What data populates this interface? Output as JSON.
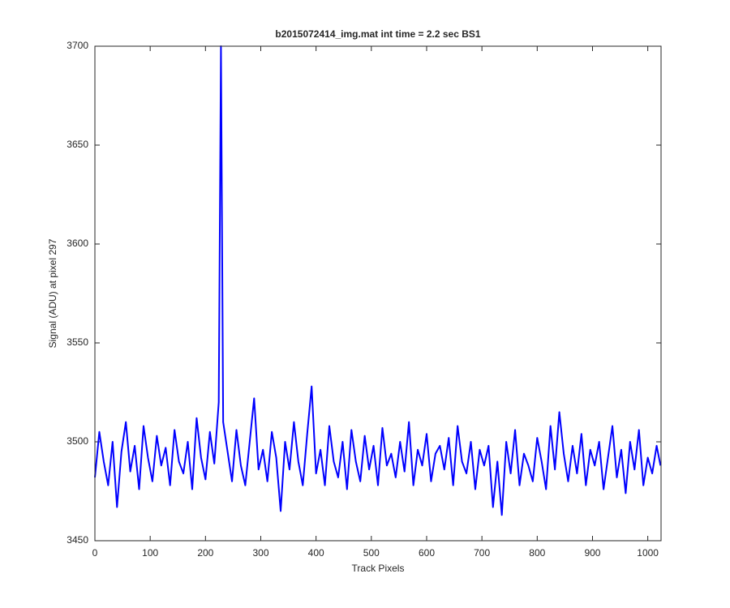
{
  "chart_data": {
    "type": "line",
    "title": "b2015072414_img.mat int time = 2.2 sec   BS1",
    "x_label": "Track Pixels",
    "y_label": "Signal (ADU) at pixel 297",
    "xlim": [
      0,
      1024
    ],
    "ylim": [
      3450,
      3700
    ],
    "xticks": [
      0,
      100,
      200,
      300,
      400,
      500,
      600,
      700,
      800,
      900,
      1000
    ],
    "yticks": [
      3450,
      3500,
      3550,
      3600,
      3650,
      3700
    ],
    "grid": false,
    "x": [
      0,
      8,
      16,
      24,
      32,
      40,
      48,
      56,
      64,
      72,
      80,
      88,
      96,
      104,
      112,
      120,
      128,
      136,
      144,
      152,
      160,
      168,
      176,
      184,
      192,
      200,
      208,
      216,
      224,
      228,
      232,
      240,
      248,
      256,
      264,
      272,
      280,
      288,
      296,
      304,
      312,
      320,
      328,
      336,
      344,
      352,
      360,
      368,
      376,
      384,
      392,
      400,
      408,
      416,
      424,
      432,
      440,
      448,
      456,
      464,
      472,
      480,
      488,
      496,
      504,
      512,
      520,
      528,
      536,
      544,
      552,
      560,
      568,
      576,
      584,
      592,
      600,
      608,
      616,
      624,
      632,
      640,
      648,
      656,
      664,
      672,
      680,
      688,
      696,
      704,
      712,
      720,
      728,
      736,
      744,
      752,
      760,
      768,
      776,
      784,
      792,
      800,
      808,
      816,
      824,
      832,
      840,
      848,
      856,
      864,
      872,
      880,
      888,
      896,
      904,
      912,
      920,
      928,
      936,
      944,
      952,
      960,
      968,
      976,
      984,
      992,
      1000,
      1008,
      1016,
      1023
    ],
    "series": [
      {
        "color": "#0000ff",
        "values": [
          3482,
          3505,
          3490,
          3478,
          3500,
          3467,
          3495,
          3510,
          3485,
          3498,
          3476,
          3508,
          3492,
          3480,
          3503,
          3488,
          3497,
          3478,
          3506,
          3490,
          3484,
          3500,
          3476,
          3512,
          3492,
          3481,
          3505,
          3489,
          3520,
          3700,
          3510,
          3495,
          3480,
          3506,
          3488,
          3478,
          3500,
          3522,
          3486,
          3496,
          3480,
          3505,
          3492,
          3465,
          3500,
          3486,
          3510,
          3490,
          3478,
          3504,
          3528,
          3484,
          3496,
          3478,
          3508,
          3490,
          3482,
          3500,
          3476,
          3506,
          3490,
          3480,
          3503,
          3486,
          3498,
          3478,
          3507,
          3488,
          3494,
          3482,
          3500,
          3485,
          3510,
          3478,
          3496,
          3488,
          3504,
          3480,
          3494,
          3498,
          3486,
          3502,
          3478,
          3508,
          3490,
          3484,
          3500,
          3476,
          3496,
          3488,
          3498,
          3467,
          3490,
          3463,
          3500,
          3484,
          3506,
          3478,
          3494,
          3488,
          3480,
          3502,
          3490,
          3476,
          3508,
          3486,
          3515,
          3494,
          3480,
          3498,
          3484,
          3504,
          3478,
          3496,
          3488,
          3500,
          3476,
          3492,
          3508,
          3482,
          3496,
          3474,
          3500,
          3486,
          3506,
          3478,
          3492,
          3484,
          3498,
          3488
        ]
      }
    ]
  }
}
